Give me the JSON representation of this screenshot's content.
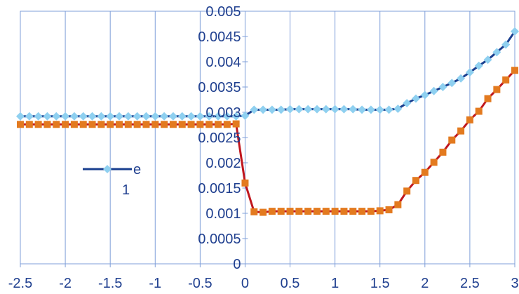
{
  "chart_data": {
    "type": "line",
    "title": "",
    "xlabel": "",
    "ylabel": "",
    "xlim": [
      -2.5,
      3
    ],
    "ylim": [
      0,
      0.005
    ],
    "x_ticks": [
      -2.5,
      -2,
      -1.5,
      -1,
      -0.5,
      0,
      0.5,
      1,
      1.5,
      2,
      2.5,
      3
    ],
    "x_tick_labels": [
      "-2.5",
      "-2",
      "-1.5",
      "-1",
      "-0.5",
      "0",
      "0.5",
      "1",
      "1.5",
      "2",
      "2.5",
      "3"
    ],
    "y_ticks": [
      0,
      0.0005,
      0.001,
      0.0015,
      0.002,
      0.0025,
      0.003,
      0.0035,
      0.004,
      0.0045,
      0.005
    ],
    "y_tick_labels": [
      "0",
      "0.0005",
      "0.001",
      "0.0015",
      "0.002",
      "0.0025",
      "0.003",
      "0.0035",
      "0.004",
      "0.0045",
      "0.005"
    ],
    "grid": {
      "vertical": true,
      "horizontal": false
    },
    "legend": {
      "position": "left-middle",
      "entries": [
        {
          "text": "e",
          "series_index": 0
        },
        {
          "text": "1",
          "series_index": 1
        }
      ]
    },
    "series": [
      {
        "name": "e",
        "line_color": "#1a3f8f",
        "marker_color": "#8fd0f0",
        "marker": "diamond",
        "x": [
          -2.5,
          -2.4,
          -2.3,
          -2.2,
          -2.1,
          -2.0,
          -1.9,
          -1.8,
          -1.7,
          -1.6,
          -1.5,
          -1.4,
          -1.3,
          -1.2,
          -1.1,
          -1.0,
          -0.9,
          -0.8,
          -0.7,
          -0.6,
          -0.5,
          -0.4,
          -0.3,
          -0.2,
          -0.1,
          0.0,
          0.1,
          0.2,
          0.3,
          0.4,
          0.5,
          0.6,
          0.7,
          0.8,
          0.9,
          1.0,
          1.1,
          1.2,
          1.3,
          1.4,
          1.5,
          1.6,
          1.7,
          1.8,
          1.9,
          2.0,
          2.1,
          2.2,
          2.3,
          2.4,
          2.5,
          2.6,
          2.7,
          2.8,
          2.9,
          3.0
        ],
        "y": [
          0.00292,
          0.00292,
          0.00292,
          0.00292,
          0.00292,
          0.00292,
          0.00292,
          0.00292,
          0.00292,
          0.00292,
          0.00292,
          0.00292,
          0.00292,
          0.00292,
          0.00292,
          0.00292,
          0.00292,
          0.00292,
          0.00292,
          0.00292,
          0.00292,
          0.00292,
          0.00292,
          0.00292,
          0.00292,
          0.00293,
          0.00305,
          0.00305,
          0.00305,
          0.00305,
          0.00306,
          0.00306,
          0.00306,
          0.00306,
          0.00306,
          0.00306,
          0.00306,
          0.00306,
          0.00305,
          0.00305,
          0.00305,
          0.00305,
          0.00307,
          0.00318,
          0.00327,
          0.00334,
          0.00342,
          0.0035,
          0.00358,
          0.00367,
          0.00379,
          0.00392,
          0.00404,
          0.00419,
          0.00434,
          0.0046
        ]
      },
      {
        "name": "1",
        "line_color": "#c0161e",
        "marker_color": "#e37a1f",
        "marker": "square",
        "x": [
          -2.5,
          -2.4,
          -2.3,
          -2.2,
          -2.1,
          -2.0,
          -1.9,
          -1.8,
          -1.7,
          -1.6,
          -1.5,
          -1.4,
          -1.3,
          -1.2,
          -1.1,
          -1.0,
          -0.9,
          -0.8,
          -0.7,
          -0.6,
          -0.5,
          -0.4,
          -0.3,
          -0.2,
          -0.1,
          0.0,
          0.1,
          0.2,
          0.3,
          0.4,
          0.5,
          0.6,
          0.7,
          0.8,
          0.9,
          1.0,
          1.1,
          1.2,
          1.3,
          1.4,
          1.5,
          1.6,
          1.7,
          1.8,
          1.9,
          2.0,
          2.1,
          2.2,
          2.3,
          2.4,
          2.5,
          2.6,
          2.7,
          2.8,
          2.9,
          3.0
        ],
        "y": [
          0.00276,
          0.00276,
          0.00276,
          0.00276,
          0.00276,
          0.00276,
          0.00276,
          0.00276,
          0.00276,
          0.00276,
          0.00276,
          0.00276,
          0.00276,
          0.00276,
          0.00276,
          0.00276,
          0.00276,
          0.00276,
          0.00276,
          0.00276,
          0.00276,
          0.00276,
          0.00276,
          0.00276,
          0.00277,
          0.0016,
          0.00103,
          0.00102,
          0.00104,
          0.00104,
          0.00104,
          0.00104,
          0.00104,
          0.00104,
          0.00104,
          0.00104,
          0.00104,
          0.00104,
          0.00104,
          0.00104,
          0.00105,
          0.00107,
          0.00117,
          0.00144,
          0.00165,
          0.00181,
          0.00201,
          0.00221,
          0.00245,
          0.00263,
          0.00285,
          0.00302,
          0.00327,
          0.00345,
          0.00364,
          0.00383
        ]
      }
    ]
  }
}
